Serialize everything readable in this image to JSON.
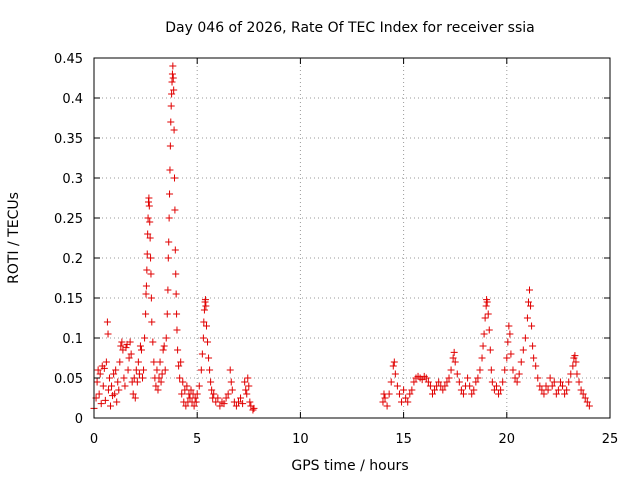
{
  "chart_data": {
    "type": "scatter",
    "title": "Day 046 of 2026, Rate Of TEC Index for receiver ssia",
    "xlabel": "GPS time / hours",
    "ylabel": "ROTI / TECUs",
    "xlim": [
      0,
      25
    ],
    "ylim": [
      0,
      0.45
    ],
    "x_ticks": [
      0,
      5,
      10,
      15,
      20,
      25
    ],
    "y_ticks": [
      0,
      0.05,
      0.1,
      0.15,
      0.2,
      0.25,
      0.3,
      0.35,
      0.4,
      0.45
    ],
    "x_tick_labels": [
      "0",
      "5",
      "10",
      "15",
      "20",
      "25"
    ],
    "y_tick_labels": [
      "0",
      "0.05",
      "0.1",
      "0.15",
      "0.2",
      "0.25",
      "0.3",
      "0.35",
      "0.4",
      "0.45"
    ],
    "grid": true,
    "marker": "+",
    "marker_color": "#e00000",
    "series": [
      {
        "name": "",
        "points": [
          [
            0.0,
            0.012
          ],
          [
            0.1,
            0.025
          ],
          [
            0.15,
            0.045
          ],
          [
            0.2,
            0.06
          ],
          [
            0.25,
            0.03
          ],
          [
            0.3,
            0.055
          ],
          [
            0.35,
            0.018
          ],
          [
            0.4,
            0.065
          ],
          [
            0.45,
            0.04
          ],
          [
            0.5,
            0.062
          ],
          [
            0.55,
            0.022
          ],
          [
            0.6,
            0.07
          ],
          [
            0.65,
            0.12
          ],
          [
            0.68,
            0.105
          ],
          [
            0.7,
            0.035
          ],
          [
            0.75,
            0.05
          ],
          [
            0.8,
            0.015
          ],
          [
            0.85,
            0.04
          ],
          [
            0.9,
            0.028
          ],
          [
            0.95,
            0.055
          ],
          [
            1.0,
            0.03
          ],
          [
            1.05,
            0.06
          ],
          [
            1.1,
            0.02
          ],
          [
            1.15,
            0.045
          ],
          [
            1.2,
            0.035
          ],
          [
            1.25,
            0.07
          ],
          [
            1.3,
            0.09
          ],
          [
            1.35,
            0.095
          ],
          [
            1.4,
            0.085
          ],
          [
            1.45,
            0.05
          ],
          [
            1.5,
            0.04
          ],
          [
            1.55,
            0.088
          ],
          [
            1.6,
            0.092
          ],
          [
            1.65,
            0.06
          ],
          [
            1.7,
            0.075
          ],
          [
            1.75,
            0.095
          ],
          [
            1.8,
            0.08
          ],
          [
            1.85,
            0.045
          ],
          [
            1.9,
            0.03
          ],
          [
            1.95,
            0.05
          ],
          [
            2.0,
            0.025
          ],
          [
            2.05,
            0.06
          ],
          [
            2.1,
            0.045
          ],
          [
            2.15,
            0.07
          ],
          [
            2.2,
            0.055
          ],
          [
            2.25,
            0.09
          ],
          [
            2.3,
            0.085
          ],
          [
            2.35,
            0.05
          ],
          [
            2.4,
            0.06
          ],
          [
            2.45,
            0.1
          ],
          [
            2.5,
            0.13
          ],
          [
            2.52,
            0.155
          ],
          [
            2.54,
            0.165
          ],
          [
            2.56,
            0.185
          ],
          [
            2.58,
            0.205
          ],
          [
            2.6,
            0.23
          ],
          [
            2.62,
            0.25
          ],
          [
            2.64,
            0.27
          ],
          [
            2.66,
            0.275
          ],
          [
            2.68,
            0.265
          ],
          [
            2.7,
            0.245
          ],
          [
            2.72,
            0.225
          ],
          [
            2.74,
            0.2
          ],
          [
            2.76,
            0.18
          ],
          [
            2.78,
            0.15
          ],
          [
            2.8,
            0.12
          ],
          [
            2.85,
            0.095
          ],
          [
            2.9,
            0.07
          ],
          [
            2.95,
            0.05
          ],
          [
            3.0,
            0.04
          ],
          [
            3.05,
            0.06
          ],
          [
            3.1,
            0.035
          ],
          [
            3.15,
            0.05
          ],
          [
            3.2,
            0.07
          ],
          [
            3.25,
            0.045
          ],
          [
            3.3,
            0.055
          ],
          [
            3.35,
            0.085
          ],
          [
            3.4,
            0.09
          ],
          [
            3.45,
            0.06
          ],
          [
            3.5,
            0.1
          ],
          [
            3.55,
            0.13
          ],
          [
            3.58,
            0.16
          ],
          [
            3.6,
            0.2
          ],
          [
            3.62,
            0.22
          ],
          [
            3.64,
            0.25
          ],
          [
            3.66,
            0.28
          ],
          [
            3.68,
            0.31
          ],
          [
            3.7,
            0.34
          ],
          [
            3.72,
            0.37
          ],
          [
            3.74,
            0.39
          ],
          [
            3.76,
            0.405
          ],
          [
            3.78,
            0.42
          ],
          [
            3.8,
            0.43
          ],
          [
            3.82,
            0.44
          ],
          [
            3.84,
            0.425
          ],
          [
            3.86,
            0.41
          ],
          [
            3.88,
            0.36
          ],
          [
            3.9,
            0.3
          ],
          [
            3.92,
            0.26
          ],
          [
            3.94,
            0.21
          ],
          [
            3.96,
            0.18
          ],
          [
            3.98,
            0.155
          ],
          [
            4.0,
            0.13
          ],
          [
            4.02,
            0.11
          ],
          [
            4.05,
            0.085
          ],
          [
            4.1,
            0.065
          ],
          [
            4.15,
            0.05
          ],
          [
            4.2,
            0.07
          ],
          [
            4.25,
            0.03
          ],
          [
            4.3,
            0.045
          ],
          [
            4.35,
            0.02
          ],
          [
            4.4,
            0.035
          ],
          [
            4.45,
            0.015
          ],
          [
            4.5,
            0.04
          ],
          [
            4.55,
            0.02
          ],
          [
            4.6,
            0.03
          ],
          [
            4.65,
            0.025
          ],
          [
            4.7,
            0.035
          ],
          [
            4.75,
            0.02
          ],
          [
            4.8,
            0.03
          ],
          [
            4.85,
            0.015
          ],
          [
            4.9,
            0.025
          ],
          [
            4.95,
            0.02
          ],
          [
            5.0,
            0.03
          ],
          [
            5.1,
            0.04
          ],
          [
            5.2,
            0.06
          ],
          [
            5.25,
            0.08
          ],
          [
            5.3,
            0.1
          ],
          [
            5.32,
            0.12
          ],
          [
            5.35,
            0.135
          ],
          [
            5.38,
            0.145
          ],
          [
            5.4,
            0.148
          ],
          [
            5.42,
            0.14
          ],
          [
            5.45,
            0.115
          ],
          [
            5.5,
            0.095
          ],
          [
            5.55,
            0.075
          ],
          [
            5.6,
            0.06
          ],
          [
            5.65,
            0.045
          ],
          [
            5.7,
            0.035
          ],
          [
            5.75,
            0.025
          ],
          [
            5.8,
            0.03
          ],
          [
            5.9,
            0.02
          ],
          [
            6.0,
            0.025
          ],
          [
            6.1,
            0.015
          ],
          [
            6.2,
            0.02
          ],
          [
            6.3,
            0.018
          ],
          [
            6.4,
            0.025
          ],
          [
            6.5,
            0.03
          ],
          [
            6.6,
            0.06
          ],
          [
            6.65,
            0.045
          ],
          [
            6.7,
            0.035
          ],
          [
            6.8,
            0.02
          ],
          [
            6.9,
            0.015
          ],
          [
            7.0,
            0.02
          ],
          [
            7.1,
            0.025
          ],
          [
            7.2,
            0.018
          ],
          [
            7.3,
            0.045
          ],
          [
            7.35,
            0.035
          ],
          [
            7.4,
            0.03
          ],
          [
            7.45,
            0.05
          ],
          [
            7.5,
            0.04
          ],
          [
            7.55,
            0.02
          ],
          [
            7.6,
            0.015
          ],
          [
            7.7,
            0.01
          ],
          [
            7.75,
            0.012
          ],
          [
            14.0,
            0.02
          ],
          [
            14.05,
            0.03
          ],
          [
            14.1,
            0.025
          ],
          [
            14.2,
            0.015
          ],
          [
            14.3,
            0.03
          ],
          [
            14.4,
            0.045
          ],
          [
            14.5,
            0.065
          ],
          [
            14.55,
            0.07
          ],
          [
            14.6,
            0.055
          ],
          [
            14.7,
            0.04
          ],
          [
            14.8,
            0.03
          ],
          [
            14.9,
            0.02
          ],
          [
            15.0,
            0.035
          ],
          [
            15.1,
            0.025
          ],
          [
            15.2,
            0.02
          ],
          [
            15.3,
            0.03
          ],
          [
            15.4,
            0.035
          ],
          [
            15.5,
            0.045
          ],
          [
            15.6,
            0.05
          ],
          [
            15.7,
            0.052
          ],
          [
            15.8,
            0.05
          ],
          [
            15.9,
            0.048
          ],
          [
            16.0,
            0.052
          ],
          [
            16.1,
            0.05
          ],
          [
            16.2,
            0.045
          ],
          [
            16.3,
            0.04
          ],
          [
            16.4,
            0.03
          ],
          [
            16.5,
            0.035
          ],
          [
            16.6,
            0.04
          ],
          [
            16.7,
            0.045
          ],
          [
            16.8,
            0.04
          ],
          [
            16.9,
            0.035
          ],
          [
            17.0,
            0.04
          ],
          [
            17.1,
            0.045
          ],
          [
            17.2,
            0.05
          ],
          [
            17.3,
            0.06
          ],
          [
            17.4,
            0.075
          ],
          [
            17.45,
            0.082
          ],
          [
            17.5,
            0.07
          ],
          [
            17.6,
            0.055
          ],
          [
            17.7,
            0.045
          ],
          [
            17.8,
            0.035
          ],
          [
            17.9,
            0.03
          ],
          [
            18.0,
            0.04
          ],
          [
            18.1,
            0.05
          ],
          [
            18.2,
            0.04
          ],
          [
            18.3,
            0.03
          ],
          [
            18.4,
            0.035
          ],
          [
            18.5,
            0.045
          ],
          [
            18.6,
            0.05
          ],
          [
            18.7,
            0.06
          ],
          [
            18.8,
            0.075
          ],
          [
            18.85,
            0.09
          ],
          [
            18.9,
            0.105
          ],
          [
            18.95,
            0.125
          ],
          [
            19.0,
            0.14
          ],
          [
            19.02,
            0.148
          ],
          [
            19.05,
            0.145
          ],
          [
            19.1,
            0.13
          ],
          [
            19.15,
            0.11
          ],
          [
            19.2,
            0.085
          ],
          [
            19.25,
            0.06
          ],
          [
            19.3,
            0.045
          ],
          [
            19.4,
            0.035
          ],
          [
            19.5,
            0.04
          ],
          [
            19.6,
            0.03
          ],
          [
            19.7,
            0.035
          ],
          [
            19.8,
            0.045
          ],
          [
            19.9,
            0.06
          ],
          [
            20.0,
            0.075
          ],
          [
            20.05,
            0.095
          ],
          [
            20.1,
            0.115
          ],
          [
            20.15,
            0.105
          ],
          [
            20.2,
            0.08
          ],
          [
            20.3,
            0.06
          ],
          [
            20.4,
            0.05
          ],
          [
            20.5,
            0.045
          ],
          [
            20.6,
            0.055
          ],
          [
            20.7,
            0.07
          ],
          [
            20.8,
            0.085
          ],
          [
            20.9,
            0.1
          ],
          [
            21.0,
            0.125
          ],
          [
            21.05,
            0.145
          ],
          [
            21.1,
            0.16
          ],
          [
            21.15,
            0.14
          ],
          [
            21.2,
            0.115
          ],
          [
            21.25,
            0.09
          ],
          [
            21.3,
            0.075
          ],
          [
            21.4,
            0.065
          ],
          [
            21.5,
            0.05
          ],
          [
            21.6,
            0.04
          ],
          [
            21.7,
            0.035
          ],
          [
            21.8,
            0.03
          ],
          [
            21.9,
            0.04
          ],
          [
            22.0,
            0.035
          ],
          [
            22.1,
            0.05
          ],
          [
            22.2,
            0.04
          ],
          [
            22.3,
            0.045
          ],
          [
            22.4,
            0.03
          ],
          [
            22.5,
            0.035
          ],
          [
            22.6,
            0.045
          ],
          [
            22.7,
            0.04
          ],
          [
            22.8,
            0.03
          ],
          [
            22.9,
            0.035
          ],
          [
            23.0,
            0.045
          ],
          [
            23.1,
            0.055
          ],
          [
            23.2,
            0.065
          ],
          [
            23.25,
            0.075
          ],
          [
            23.3,
            0.078
          ],
          [
            23.35,
            0.07
          ],
          [
            23.4,
            0.055
          ],
          [
            23.5,
            0.045
          ],
          [
            23.6,
            0.035
          ],
          [
            23.7,
            0.03
          ],
          [
            23.8,
            0.025
          ],
          [
            23.9,
            0.02
          ],
          [
            24.0,
            0.015
          ]
        ]
      }
    ]
  }
}
